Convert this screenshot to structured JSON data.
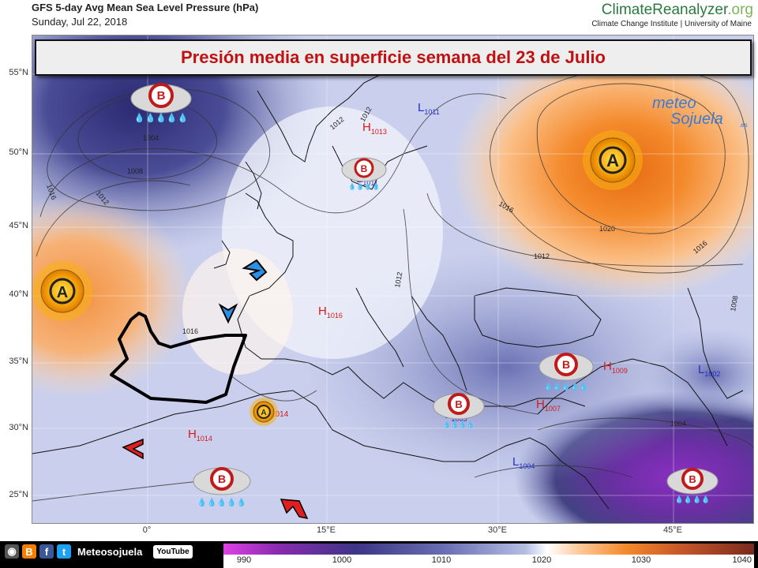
{
  "header": {
    "title": "GFS 5-day Avg Mean Sea Level Pressure (hPa)",
    "date": "Sunday, Jul 22, 2018"
  },
  "brand": {
    "name": "ClimateReanalyzer",
    "tld": ".org",
    "subtitle": "Climate Change Institute | University of Maine"
  },
  "banner": {
    "text": "Presión media en superficie semana del 23 de Julio"
  },
  "watermark": {
    "line1": "meteo",
    "line2": "Sojuela",
    "suffix": ".es"
  },
  "axes": {
    "lat_labels": [
      "55°N",
      "50°N",
      "45°N",
      "40°N",
      "35°N",
      "30°N",
      "25°N"
    ],
    "lon_labels": [
      "0°",
      "15°E",
      "30°E",
      "45°E"
    ]
  },
  "pressure_labels": [
    {
      "kind": "L",
      "value": "1011"
    },
    {
      "kind": "H",
      "value": "1013"
    },
    {
      "kind": "L",
      "value": "1011"
    },
    {
      "kind": "H",
      "value": "1016"
    },
    {
      "kind": "H",
      "value": "1014"
    },
    {
      "kind": "H",
      "value": "1014"
    },
    {
      "kind": "L",
      "value": "1005"
    },
    {
      "kind": "H",
      "value": "1007"
    },
    {
      "kind": "H",
      "value": "1009"
    },
    {
      "kind": "L",
      "value": "1002"
    },
    {
      "kind": "L",
      "value": "1004"
    }
  ],
  "isobar_labels": [
    "1004",
    "1008",
    "1012",
    "1016",
    "1012",
    "1012",
    "1016",
    "1020",
    "1012",
    "1016",
    "1008",
    "1012",
    "1016",
    "1004"
  ],
  "weather_icons": [
    {
      "type": "low-rain",
      "letter": "B"
    },
    {
      "type": "low-rain",
      "letter": "B"
    },
    {
      "type": "high-sun",
      "letter": "A"
    },
    {
      "type": "high-sun",
      "letter": "A"
    },
    {
      "type": "high-sun",
      "letter": "A"
    },
    {
      "type": "low-rain",
      "letter": "B"
    },
    {
      "type": "low-rain",
      "letter": "B"
    },
    {
      "type": "low-rain",
      "letter": "B"
    },
    {
      "type": "low-rain",
      "letter": "B"
    }
  ],
  "colorbar": {
    "ticks": [
      "990",
      "1000",
      "1010",
      "1020",
      "1030",
      "1040"
    ]
  },
  "social": {
    "name": "Meteosojuela",
    "youtube": "YouTube"
  },
  "colors": {
    "banner_text": "#c01212",
    "high_label": "#d91a1a",
    "low_label": "#2130c9"
  }
}
